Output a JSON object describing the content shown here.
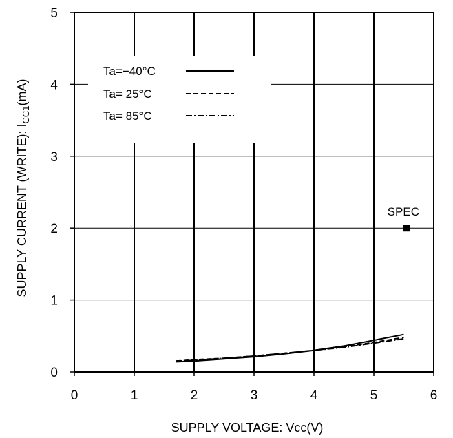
{
  "chart_data": {
    "type": "line",
    "xlabel": "SUPPLY VOLTAGE: Vcc(V)",
    "ylabel": "SUPPLY CURRENT (WRITE): I",
    "ylabel_sub": "CC1",
    "ylabel_unit": "(mA)",
    "xlim": [
      0,
      6
    ],
    "ylim": [
      0,
      5
    ],
    "x_ticks": [
      "0",
      "1",
      "2",
      "3",
      "4",
      "5",
      "6"
    ],
    "y_ticks": [
      "0",
      "1",
      "2",
      "3",
      "4",
      "5"
    ],
    "grid": true,
    "legend_position": "top-left",
    "series": [
      {
        "name": "Ta=−40°C",
        "line_style": "solid",
        "x": [
          1.7,
          2.0,
          2.5,
          3.0,
          3.5,
          4.0,
          4.5,
          5.0,
          5.5
        ],
        "y": [
          0.14,
          0.15,
          0.18,
          0.21,
          0.25,
          0.3,
          0.36,
          0.44,
          0.52
        ]
      },
      {
        "name": "Ta= 25°C",
        "line_style": "dashed",
        "x": [
          1.7,
          2.0,
          2.5,
          3.0,
          3.5,
          4.0,
          4.5,
          5.0,
          5.5
        ],
        "y": [
          0.15,
          0.17,
          0.19,
          0.22,
          0.26,
          0.3,
          0.35,
          0.41,
          0.48
        ]
      },
      {
        "name": "Ta= 85°C",
        "line_style": "dashdot",
        "x": [
          1.7,
          2.0,
          2.5,
          3.0,
          3.5,
          4.0,
          4.5,
          5.0,
          5.5
        ],
        "y": [
          0.15,
          0.16,
          0.19,
          0.22,
          0.26,
          0.3,
          0.34,
          0.4,
          0.46
        ]
      }
    ],
    "spec": {
      "label": "SPEC",
      "x": 5.55,
      "y": 2.0
    }
  }
}
